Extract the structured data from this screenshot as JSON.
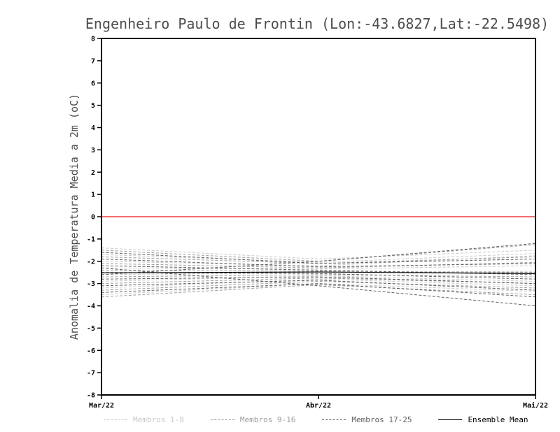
{
  "chart_data": {
    "type": "line",
    "title": "Engenheiro Paulo de Frontin (Lon:-43.6827,Lat:-22.5498)",
    "xlabel": "",
    "ylabel": "Anomalia de Temperatura Media a 2m (oC)",
    "x_tick_labels": [
      "Mar/22",
      "Abr/22",
      "Mai/22"
    ],
    "ylim": [
      -8,
      8
    ],
    "y_tick_step": 1,
    "grid": false,
    "legend_position": "bottom",
    "zero_line": {
      "value": 0,
      "color": "#f23d3d"
    },
    "axis_color": "#000000",
    "tick_label_color": "#000000",
    "groups": [
      {
        "name": "Membros 1-8",
        "color": "#c9c9c9",
        "style": "dashed",
        "members": [
          [
            -1.4,
            -1.9,
            -1.5
          ],
          [
            -1.7,
            -2.05,
            -1.65
          ],
          [
            -2.0,
            -2.2,
            -1.75
          ],
          [
            -2.3,
            -2.35,
            -2.2
          ],
          [
            -2.6,
            -2.5,
            -2.45
          ],
          [
            -2.9,
            -2.65,
            -2.9
          ],
          [
            -3.2,
            -2.8,
            -3.1
          ],
          [
            -3.5,
            -3.0,
            -3.35
          ]
        ]
      },
      {
        "name": "Membros 9-16",
        "color": "#9e9e9e",
        "style": "dashed",
        "members": [
          [
            -1.5,
            -2.0,
            -1.25
          ],
          [
            -1.8,
            -2.1,
            -1.8
          ],
          [
            -2.1,
            -2.3,
            -2.05
          ],
          [
            -2.4,
            -2.45,
            -2.5
          ],
          [
            -2.7,
            -2.6,
            -2.7
          ],
          [
            -3.0,
            -2.75,
            -3.0
          ],
          [
            -3.3,
            -2.9,
            -3.2
          ],
          [
            -3.6,
            -3.05,
            -3.5
          ]
        ]
      },
      {
        "name": "Membros 17-25",
        "color": "#606060",
        "style": "dashed",
        "members": [
          [
            -2.6,
            -2.0,
            -1.2
          ],
          [
            -1.6,
            -2.1,
            -1.9
          ],
          [
            -1.9,
            -2.25,
            -2.1
          ],
          [
            -2.2,
            -2.4,
            -2.6
          ],
          [
            -2.5,
            -2.55,
            -2.8
          ],
          [
            -2.8,
            -2.7,
            -3.0
          ],
          [
            -3.1,
            -2.85,
            -3.3
          ],
          [
            -3.4,
            -3.0,
            -3.6
          ],
          [
            -2.3,
            -3.1,
            -4.0
          ]
        ]
      }
    ],
    "ensemble_mean": {
      "name": "Ensemble Mean",
      "color": "#000000",
      "style": "solid",
      "values": [
        -2.52,
        -2.48,
        -2.55
      ]
    }
  }
}
